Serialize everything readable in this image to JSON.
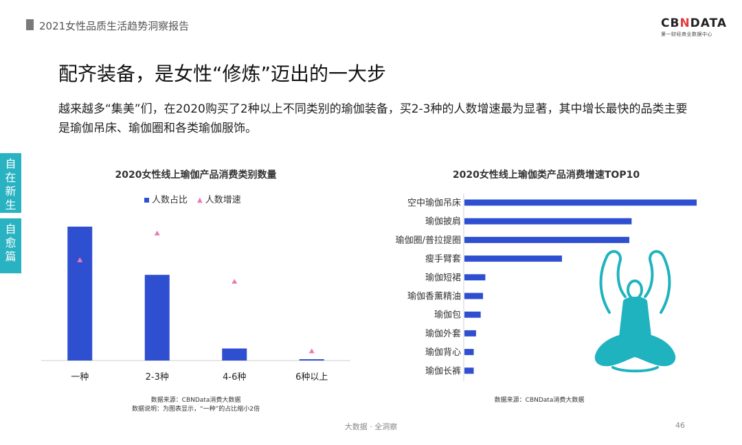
{
  "header": {
    "report_title": "2021女性品质生活趋势洞察报告"
  },
  "logo": {
    "main_prefix": "CB",
    "main_mark": "N",
    "main_suffix": "DATA",
    "sub": "第一财经商业数据中心"
  },
  "headline": "配齐装备，是女性“修炼”迈出的一大步",
  "description": "越来越多“集美”们，在2020购买了2种以上不同类别的瑜伽装备，买2-3种的人数增速最为显著，其中增长最快的品类主要是瑜伽吊床、瑜伽圈和各类瑜伽服饰。",
  "side_tabs": {
    "tab1": [
      "自",
      "在",
      "新",
      "生"
    ],
    "tab2": [
      "自",
      "愈",
      "篇"
    ]
  },
  "colors": {
    "bar": "#2f4fd1",
    "marker": "#e87ab5",
    "accent": "#29b2c1",
    "figure": "#1fb3bf"
  },
  "chart_data": [
    {
      "type": "bar",
      "title": "2020女性线上瑜伽产品消费类别数量",
      "categories": [
        "一种",
        "2-3种",
        "4-6种",
        "6种以上"
      ],
      "legend": [
        "人数占比",
        "人数增速"
      ],
      "legend_position": "top",
      "series": [
        {
          "name": "人数占比",
          "kind": "bar",
          "values": [
            100,
            64,
            9,
            1
          ]
        },
        {
          "name": "人数增速",
          "kind": "marker",
          "values": [
            75,
            95,
            59,
            7
          ]
        }
      ],
      "ylim": [
        0,
        100
      ],
      "y_axis_visible": false,
      "grid": false
    },
    {
      "type": "bar",
      "orientation": "horizontal",
      "title": "2020女性线上瑜伽类产品消费增速TOP10",
      "categories": [
        "空中瑜伽吊床",
        "瑜伽披肩",
        "瑜伽圈/普拉提圈",
        "瘦手臂套",
        "瑜伽短裙",
        "瑜伽香薰精油",
        "瑜伽包",
        "瑜伽外套",
        "瑜伽背心",
        "瑜伽长裤"
      ],
      "values": [
        100,
        72,
        71,
        42,
        9,
        8,
        7,
        5,
        4,
        4
      ],
      "xlim": [
        0,
        100
      ],
      "x_axis_visible": false,
      "grid": false
    }
  ],
  "notes": {
    "left_source": "数据来源：CBNData消费大数据",
    "left_explain": "数据说明：为图表显示，“一种”的占比缩小2倍",
    "right_source": "数据来源：CBNData消费大数据"
  },
  "footer": {
    "center": "大数据 · 全洞察",
    "page": "46"
  }
}
